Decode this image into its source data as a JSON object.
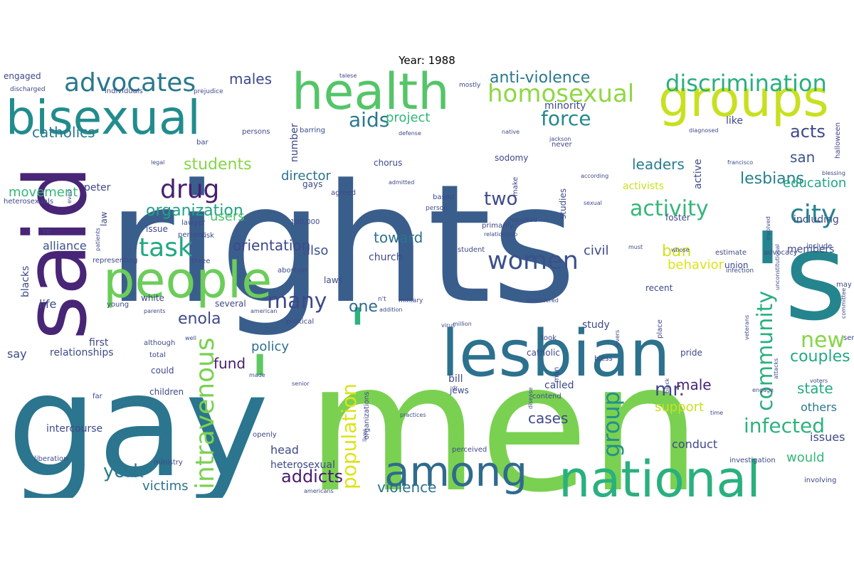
{
  "title": "Year: 1988",
  "words": [
    {
      "text": "rights",
      "color": "#3a5e8c",
      "v": true
    },
    {
      "text": "men",
      "color": "#7ad151",
      "v": true
    },
    {
      "text": "gay",
      "color": "#2b758e",
      "v": true
    },
    {
      "text": "lesbian",
      "color": "#2c718e",
      "v": true
    },
    {
      "text": "'s",
      "color": "#25858e",
      "v": true
    },
    {
      "text": "said",
      "color": "#482576",
      "v": true
    },
    {
      "text": "bisexual",
      "color": "#228c8d",
      "v": true
    },
    {
      "text": "health",
      "color": "#54c568",
      "v": true
    },
    {
      "text": "groups",
      "color": "#c8e020",
      "v": true
    },
    {
      "text": "people",
      "color": "#6ccd5a",
      "v": true
    },
    {
      "text": "national",
      "color": "#2ab07f",
      "v": true
    },
    {
      "text": "among",
      "color": "#306a8e",
      "v": true
    },
    {
      "text": "'",
      "color": "#5ec962",
      "v": true
    },
    {
      "text": "'",
      "color": "#2db27d",
      "v": true
    },
    {
      "text": "women",
      "color": "#3b518b",
      "v": true
    },
    {
      "text": "advocates",
      "color": "#2a788e",
      "v": true
    },
    {
      "text": "homosexual",
      "color": "#8fd744",
      "v": true
    },
    {
      "text": "discrimination",
      "color": "#29af7f",
      "v": true
    },
    {
      "text": "drug",
      "color": "#481f70",
      "v": true
    },
    {
      "text": "aids",
      "color": "#2a788e",
      "v": true
    },
    {
      "text": "task",
      "color": "#22a884",
      "v": true
    },
    {
      "text": "organization",
      "color": "#20a386",
      "v": true
    },
    {
      "text": "activity",
      "color": "#34b679",
      "v": true
    },
    {
      "text": "city",
      "color": "#26828e",
      "v": true
    },
    {
      "text": "many",
      "color": "#3e4989",
      "v": true
    },
    {
      "text": "community",
      "color": "#2ab07f",
      "v": true
    },
    {
      "text": "intravenous",
      "color": "#7ad151",
      "v": true
    },
    {
      "text": "population",
      "color": "#dde318",
      "v": true
    },
    {
      "text": "group",
      "color": "#21918c",
      "v": true
    },
    {
      "text": "new",
      "color": "#86d549",
      "v": true
    },
    {
      "text": "infected",
      "color": "#2db27d",
      "v": true
    },
    {
      "text": "mr.",
      "color": "#414487",
      "v": true
    },
    {
      "text": "york",
      "color": "#2a788e",
      "v": true
    },
    {
      "text": "force",
      "color": "#23898e",
      "v": true
    },
    {
      "text": "anti-violence",
      "color": "#2a788e",
      "v": true
    },
    {
      "text": "one",
      "color": "#306a8e",
      "v": true
    },
    {
      "text": "enola",
      "color": "#3e4989",
      "v": true
    },
    {
      "text": "two",
      "color": "#3e4989",
      "v": true
    },
    {
      "text": "addicts",
      "color": "#481b6d",
      "v": true
    },
    {
      "text": "violence",
      "color": "#2c728e",
      "v": true
    },
    {
      "text": "students",
      "color": "#86d549",
      "v": true
    },
    {
      "text": "orientation",
      "color": "#3e4989",
      "v": true
    },
    {
      "text": "leaders",
      "color": "#287c8e",
      "v": true
    },
    {
      "text": "lesbians",
      "color": "#27808e",
      "v": true
    },
    {
      "text": "acts",
      "color": "#3e4989",
      "v": true
    },
    {
      "text": "san",
      "color": "#3b528b",
      "v": true
    },
    {
      "text": "couples",
      "color": "#22a884",
      "v": true
    },
    {
      "text": "state",
      "color": "#25ab82",
      "v": true
    },
    {
      "text": "catholics",
      "color": "#2a788e",
      "v": true
    },
    {
      "text": "males",
      "color": "#3e4989",
      "v": true
    },
    {
      "text": "ban",
      "color": "#d0e11c",
      "v": true
    },
    {
      "text": "male",
      "color": "#482475",
      "v": true
    },
    {
      "text": "also",
      "color": "#3b528b",
      "v": true
    },
    {
      "text": "toward",
      "color": "#2c728e",
      "v": true
    },
    {
      "text": "fund",
      "color": "#481b6d",
      "v": true
    },
    {
      "text": "project",
      "color": "#32b67a",
      "v": true
    },
    {
      "text": "director",
      "color": "#2c728e",
      "v": true
    },
    {
      "text": "movement",
      "color": "#35b779",
      "v": true
    },
    {
      "text": "policy",
      "color": "#2c728e",
      "v": true
    },
    {
      "text": "cases",
      "color": "#3e4989",
      "v": true
    },
    {
      "text": "support",
      "color": "#cae11f",
      "v": true
    },
    {
      "text": "victims",
      "color": "#2c728e",
      "v": true
    },
    {
      "text": "education",
      "color": "#21a685",
      "v": true
    },
    {
      "text": "users",
      "color": "#4ac16d",
      "v": true
    },
    {
      "text": "alliance",
      "color": "#3b528b",
      "v": true
    },
    {
      "text": "civil",
      "color": "#3e4989",
      "v": true
    },
    {
      "text": "behavior",
      "color": "#dde318",
      "v": true
    },
    {
      "text": "others",
      "color": "#2a788e",
      "v": true
    },
    {
      "text": "issues",
      "color": "#3e4989",
      "v": true
    },
    {
      "text": "would",
      "color": "#35b779",
      "v": true
    },
    {
      "text": "head",
      "color": "#3e4989",
      "v": true
    },
    {
      "text": "conduct",
      "color": "#3e4989",
      "v": true
    },
    {
      "text": "heterosexual",
      "color": "#3e4989",
      "v": true
    },
    {
      "text": "say",
      "color": "#3e4989",
      "v": true
    },
    {
      "text": "life",
      "color": "#3e4989",
      "v": true
    },
    {
      "text": "church",
      "color": "#3e4989",
      "v": true
    },
    {
      "text": "study",
      "color": "#3e4989",
      "v": true
    },
    {
      "text": "called",
      "color": "#3e4989",
      "v": true
    },
    {
      "text": "members",
      "color": "#3e4989",
      "v": true
    },
    {
      "text": "activists",
      "color": "#cae11f",
      "v": true
    },
    {
      "text": "including",
      "color": "#3e4989",
      "v": true
    },
    {
      "text": "number",
      "color": "#3e4989",
      "v": true
    },
    {
      "text": "minority",
      "color": "#3e4989",
      "v": true
    },
    {
      "text": "like",
      "color": "#3e4989",
      "v": true
    },
    {
      "text": "active",
      "color": "#3e4989",
      "v": true
    },
    {
      "text": "blacks",
      "color": "#3e4989",
      "v": true
    },
    {
      "text": "relationships",
      "color": "#3e4989",
      "v": true
    },
    {
      "text": "first",
      "color": "#3e4989",
      "v": true
    },
    {
      "text": "peter",
      "color": "#3e4989",
      "v": true
    },
    {
      "text": "law",
      "color": "#3e4989",
      "v": true
    },
    {
      "text": "chorus",
      "color": "#3e4989",
      "v": true
    },
    {
      "text": "sodomy",
      "color": "#3e4989",
      "v": true
    },
    {
      "text": "studies",
      "color": "#3e4989",
      "v": true
    },
    {
      "text": "gays",
      "color": "#3e4989",
      "v": true
    },
    {
      "text": "bill",
      "color": "#3e4989",
      "v": true
    },
    {
      "text": "jews",
      "color": "#3e4989",
      "v": true
    },
    {
      "text": "intercourse",
      "color": "#3e4989",
      "v": true
    },
    {
      "text": "children",
      "color": "#3e4989",
      "v": true
    },
    {
      "text": "could",
      "color": "#3e4989",
      "v": true
    },
    {
      "text": "total",
      "color": "#3e4989",
      "v": true
    },
    {
      "text": "young",
      "color": "#3e4989",
      "v": true
    },
    {
      "text": "white",
      "color": "#3e4989",
      "v": true
    },
    {
      "text": "several",
      "color": "#3e4989",
      "v": true
    },
    {
      "text": "laws",
      "color": "#3e4989",
      "v": true
    },
    {
      "text": "issue",
      "color": "#3e4989",
      "v": true
    },
    {
      "text": "lawyer",
      "color": "#3e4989",
      "v": true
    },
    {
      "text": "100,000",
      "color": "#3e4989",
      "v": true
    },
    {
      "text": "make",
      "color": "#3e4989",
      "v": true
    },
    {
      "text": "foster",
      "color": "#3e4989",
      "v": true
    },
    {
      "text": "include",
      "color": "#3e4989",
      "v": true
    },
    {
      "text": "union",
      "color": "#3e4989",
      "v": true
    },
    {
      "text": "recent",
      "color": "#3e4989",
      "v": true
    },
    {
      "text": "may",
      "color": "#3e4989",
      "v": true
    },
    {
      "text": "pride",
      "color": "#3e4989",
      "v": true
    },
    {
      "text": "catholic",
      "color": "#3e4989",
      "v": true
    },
    {
      "text": "bless",
      "color": "#3e4989",
      "v": true
    },
    {
      "text": "investigation",
      "color": "#3e4989",
      "v": true
    },
    {
      "text": "involving",
      "color": "#3e4989",
      "v": true
    },
    {
      "text": "openly",
      "color": "#3e4989",
      "v": true
    },
    {
      "text": "perceived",
      "color": "#3e4989",
      "v": true
    },
    {
      "text": "organizations",
      "color": "#3e4989",
      "v": true
    },
    {
      "text": "liberation",
      "color": "#3e4989",
      "v": true
    },
    {
      "text": "engaged",
      "color": "#3e4989",
      "v": true
    },
    {
      "text": "discharged",
      "color": "#3e4989",
      "v": true
    },
    {
      "text": "individuals",
      "color": "#3e4989",
      "v": true
    },
    {
      "text": "prejudice",
      "color": "#3e4989",
      "v": true
    },
    {
      "text": "talese",
      "color": "#3e4989",
      "v": true
    },
    {
      "text": "mostly",
      "color": "#3e4989",
      "v": true
    },
    {
      "text": "persons",
      "color": "#3e4989",
      "v": true
    },
    {
      "text": "barring",
      "color": "#3e4989",
      "v": true
    },
    {
      "text": "defense",
      "color": "#3e4989",
      "v": true
    },
    {
      "text": "bar",
      "color": "#3e4989",
      "v": true
    },
    {
      "text": "never",
      "color": "#3e4989",
      "v": true
    },
    {
      "text": "jackson",
      "color": "#3e4989",
      "v": true
    },
    {
      "text": "native",
      "color": "#3e4989",
      "v": true
    },
    {
      "text": "diagnosed",
      "color": "#3e4989",
      "v": true
    },
    {
      "text": "halloween",
      "color": "#3e4989",
      "v": true
    },
    {
      "text": "legal",
      "color": "#3e4989",
      "v": true
    },
    {
      "text": "francisco",
      "color": "#3e4989",
      "v": true
    },
    {
      "text": "blessing",
      "color": "#3e4989",
      "v": true
    },
    {
      "text": "even",
      "color": "#3e4989",
      "v": true
    },
    {
      "text": "agreed",
      "color": "#3e4989",
      "v": true
    },
    {
      "text": "admitted",
      "color": "#3e4989",
      "v": true
    },
    {
      "text": "according",
      "color": "#3e4989",
      "v": true
    },
    {
      "text": "heterosexuals",
      "color": "#3e4989",
      "v": true
    },
    {
      "text": "based",
      "color": "#3e4989",
      "v": true
    },
    {
      "text": "person",
      "color": "#3e4989",
      "v": true
    },
    {
      "text": "reported",
      "color": "#3e4989",
      "v": true
    },
    {
      "text": "primarily",
      "color": "#3e4989",
      "v": true
    },
    {
      "text": "sexual",
      "color": "#3e4989",
      "v": true
    },
    {
      "text": "'re",
      "color": "#3e4989",
      "v": true
    },
    {
      "text": "percent",
      "color": "#3e4989",
      "v": true
    },
    {
      "text": "relationship",
      "color": "#3e4989",
      "v": true
    },
    {
      "text": "patients",
      "color": "#3e4989",
      "v": true
    },
    {
      "text": "risk",
      "color": "#3e4989",
      "v": true
    },
    {
      "text": "must",
      "color": "#3e4989",
      "v": true
    },
    {
      "text": "involved",
      "color": "#3e4989",
      "v": true
    },
    {
      "text": "representing",
      "color": "#3e4989",
      "v": true
    },
    {
      "text": "three",
      "color": "#3e4989",
      "v": true
    },
    {
      "text": "infection",
      "color": "#3e4989",
      "v": true
    },
    {
      "text": "student",
      "color": "#3e4989",
      "v": true
    },
    {
      "text": "whose",
      "color": "#3e4989",
      "v": true
    },
    {
      "text": "estimate",
      "color": "#3e4989",
      "v": true
    },
    {
      "text": "advocacy",
      "color": "#3e4989",
      "v": true
    },
    {
      "text": "abortion",
      "color": "#3e4989",
      "v": true
    },
    {
      "text": "n't",
      "color": "#3e4989",
      "v": true
    },
    {
      "text": "military",
      "color": "#3e4989",
      "v": true
    },
    {
      "text": "parents",
      "color": "#3e4989",
      "v": true
    },
    {
      "text": "american",
      "color": "#3e4989",
      "v": true
    },
    {
      "text": "addition",
      "color": "#3e4989",
      "v": true
    },
    {
      "text": "considered",
      "color": "#3e4989",
      "v": true
    },
    {
      "text": "committee",
      "color": "#3e4989",
      "v": true
    },
    {
      "text": "political",
      "color": "#3e4989",
      "v": true
    },
    {
      "text": "virus",
      "color": "#3e4989",
      "v": true
    },
    {
      "text": "million",
      "color": "#3e4989",
      "v": true
    },
    {
      "text": "veterans",
      "color": "#3e4989",
      "v": true
    },
    {
      "text": "unconstitutional",
      "color": "#3e4989",
      "v": true
    },
    {
      "text": "place",
      "color": "#3e4989",
      "v": true
    },
    {
      "text": "although",
      "color": "#3e4989",
      "v": true
    },
    {
      "text": "took",
      "color": "#3e4989",
      "v": true
    },
    {
      "text": "well",
      "color": "#3e4989",
      "v": true
    },
    {
      "text": "lovers",
      "color": "#3e4989",
      "v": true
    },
    {
      "text": "services",
      "color": "#3e4989",
      "v": true
    },
    {
      "text": "far",
      "color": "#3e4989",
      "v": true
    },
    {
      "text": "made",
      "color": "#3e4989",
      "v": true
    },
    {
      "text": "senior",
      "color": "#3e4989",
      "v": true
    },
    {
      "text": "dr.",
      "color": "#3e4989",
      "v": true
    },
    {
      "text": "man",
      "color": "#3e4989",
      "v": true
    },
    {
      "text": "black",
      "color": "#3e4989",
      "v": true
    },
    {
      "text": "voters",
      "color": "#3e4989",
      "v": true
    },
    {
      "text": "attacks",
      "color": "#3e4989",
      "v": true
    },
    {
      "text": "engage",
      "color": "#3e4989",
      "v": true
    },
    {
      "text": "practices",
      "color": "#3e4989",
      "v": true
    },
    {
      "text": "time",
      "color": "#3e4989",
      "v": true
    },
    {
      "text": "contend",
      "color": "#3e4989",
      "v": true
    },
    {
      "text": "disease",
      "color": "#3e4989",
      "v": true
    },
    {
      "text": "lives",
      "color": "#3e4989",
      "v": true
    },
    {
      "text": "ministry",
      "color": "#3e4989",
      "v": true
    },
    {
      "text": "americans",
      "color": "#3e4989",
      "v": true
    }
  ]
}
